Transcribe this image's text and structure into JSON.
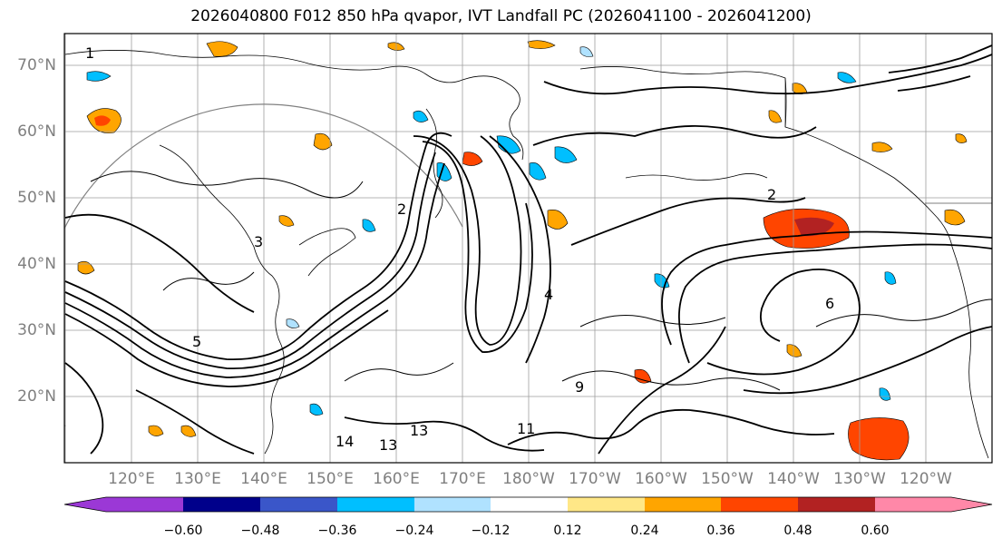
{
  "title": "2026040800 F012 850 hPa qvapor, IVT Landfall PC (2026041100 - 2026041200)",
  "lat_labels": [
    "70°N",
    "60°N",
    "50°N",
    "40°N",
    "30°N",
    "20°N"
  ],
  "lon_labels": [
    "120°E",
    "130°E",
    "140°E",
    "150°E",
    "160°E",
    "170°E",
    "180°W",
    "170°W",
    "160°W",
    "150°W",
    "140°W",
    "130°W",
    "120°W"
  ],
  "colorbar": {
    "colors": [
      "#9b38d6",
      "#00008b",
      "#3a56c9",
      "#00bfff",
      "#b0e2ff",
      "#ffffff",
      "#ffe787",
      "#ffa500",
      "#ff4500",
      "#b22222",
      "#ff88a8"
    ],
    "labels": [
      "−0.60",
      "−0.48",
      "−0.36",
      "−0.24",
      "−0.12",
      "0.12",
      "0.24",
      "0.36",
      "0.48",
      "0.60"
    ]
  },
  "contour_labels": [
    "1",
    "2",
    "2",
    "3",
    "4",
    "5",
    "6",
    "9",
    "11",
    "13",
    "13",
    "14"
  ]
}
